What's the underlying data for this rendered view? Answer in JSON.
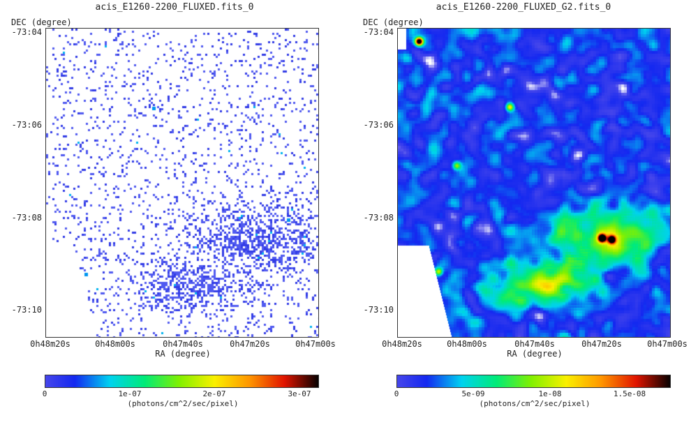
{
  "panels": [
    {
      "title": "acis_E1260-2200_FLUXED.fits_0",
      "x_axis_label": "RA (degree)",
      "y_axis_label": "DEC (degree)",
      "x_ticks": [
        "0h48m20s",
        "0h48m00s",
        "0h47m40s",
        "0h47m20s",
        "0h47m00s"
      ],
      "y_ticks": [
        "-73:04",
        "-73:06",
        "-73:08",
        "-73:10"
      ],
      "colorbar_ticks": [
        "0",
        "1e-07",
        "2e-07",
        "3e-07"
      ],
      "colorbar_ticks_frac": [
        0.0,
        0.31,
        0.62,
        0.93
      ],
      "colorbar_unit": "(photons/cm^2/sec/pixel)",
      "image_style": "sparse-pixels",
      "colormap": "rainbow-white-blue-cyan-green-yellow-red-black"
    },
    {
      "title": "acis_E1260-2200_FLUXED_G2.fits_0",
      "x_axis_label": "RA (degree)",
      "y_axis_label": "DEC (degree)",
      "x_ticks": [
        "0h48m20s",
        "0h48m00s",
        "0h47m40s",
        "0h47m20s",
        "0h47m00s"
      ],
      "y_ticks": [
        "-73:04",
        "-73:06",
        "-73:08",
        "-73:10"
      ],
      "colorbar_ticks": [
        "0",
        "5e-09",
        "1e-08",
        "1.5e-08"
      ],
      "colorbar_ticks_frac": [
        0.0,
        0.28,
        0.56,
        0.85
      ],
      "colorbar_unit": "(photons/cm^2/sec/pixel)",
      "image_style": "smoothed",
      "colormap": "rainbow-white-blue-cyan-green-yellow-red-black"
    }
  ]
}
